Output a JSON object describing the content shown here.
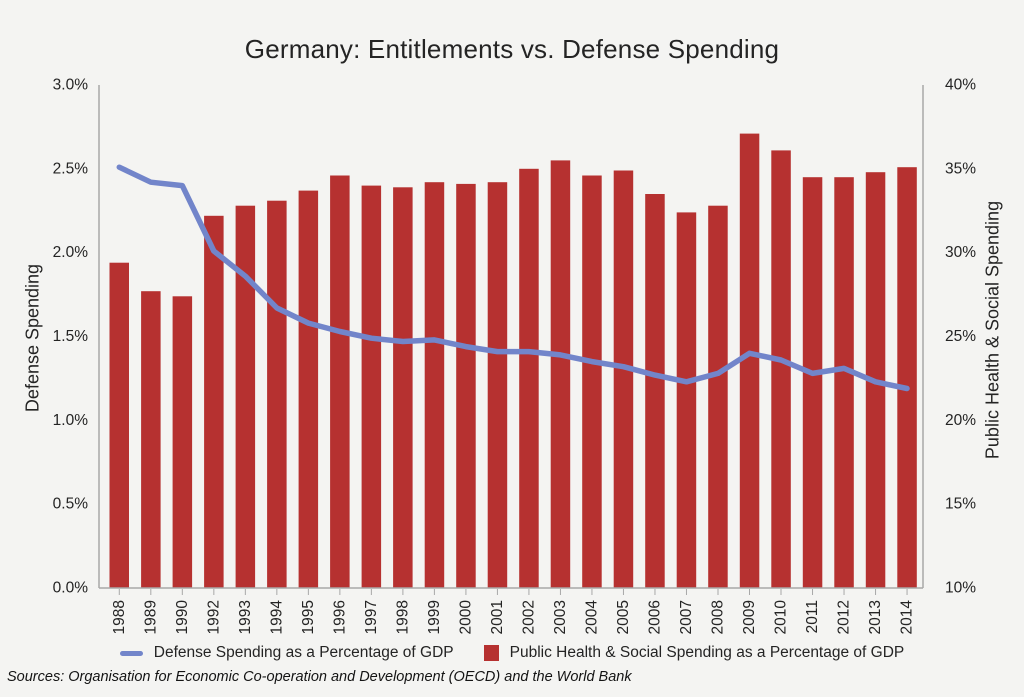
{
  "source_note": "Sources: Organisation for Economic Co-operation and Development (OECD) and the World Bank",
  "colors": {
    "background": "#f4f4f2",
    "bar": "#b63130",
    "line": "#7285ca",
    "axis": "#a8a8a8",
    "text": "#242424"
  },
  "chart_data": {
    "type": "combo-bar-line",
    "title": "Germany: Entitlements vs. Defense Spending",
    "categories": [
      "1988",
      "1989",
      "1990",
      "1992",
      "1993",
      "1994",
      "1995",
      "1996",
      "1997",
      "1998",
      "1999",
      "2000",
      "2001",
      "2002",
      "2003",
      "2004",
      "2005",
      "2006",
      "2007",
      "2008",
      "2009",
      "2010",
      "2011",
      "2012",
      "2013",
      "2014"
    ],
    "series": [
      {
        "name": "Defense Spending as a Percentage of GDP",
        "type": "line",
        "axis": "left",
        "values": [
          2.51,
          2.42,
          2.4,
          2.01,
          1.86,
          1.67,
          1.58,
          1.53,
          1.49,
          1.47,
          1.48,
          1.44,
          1.41,
          1.41,
          1.39,
          1.35,
          1.32,
          1.27,
          1.23,
          1.28,
          1.4,
          1.36,
          1.28,
          1.31,
          1.23,
          1.19
        ]
      },
      {
        "name": "Public Health & Social Spending as a Percentage of GDP",
        "type": "bar",
        "axis": "right",
        "values": [
          29.4,
          27.7,
          27.4,
          32.2,
          32.8,
          33.1,
          33.7,
          34.6,
          34.0,
          33.9,
          34.2,
          34.1,
          34.2,
          35.0,
          35.5,
          34.6,
          34.9,
          33.5,
          32.4,
          32.8,
          37.1,
          36.1,
          34.5,
          34.5,
          34.8,
          35.1
        ]
      }
    ],
    "left_axis": {
      "title": "Defense Spending",
      "min": 0,
      "max": 3,
      "ticks": [
        "0.0%",
        "0.5%",
        "1.0%",
        "1.5%",
        "2.0%",
        "2.5%",
        "3.0%"
      ]
    },
    "right_axis": {
      "title": "Public Health & Social Spending",
      "min": 10,
      "max": 40,
      "ticks": [
        "10%",
        "15%",
        "20%",
        "25%",
        "30%",
        "35%",
        "40%"
      ]
    },
    "grid": false,
    "legend_position": "bottom"
  }
}
